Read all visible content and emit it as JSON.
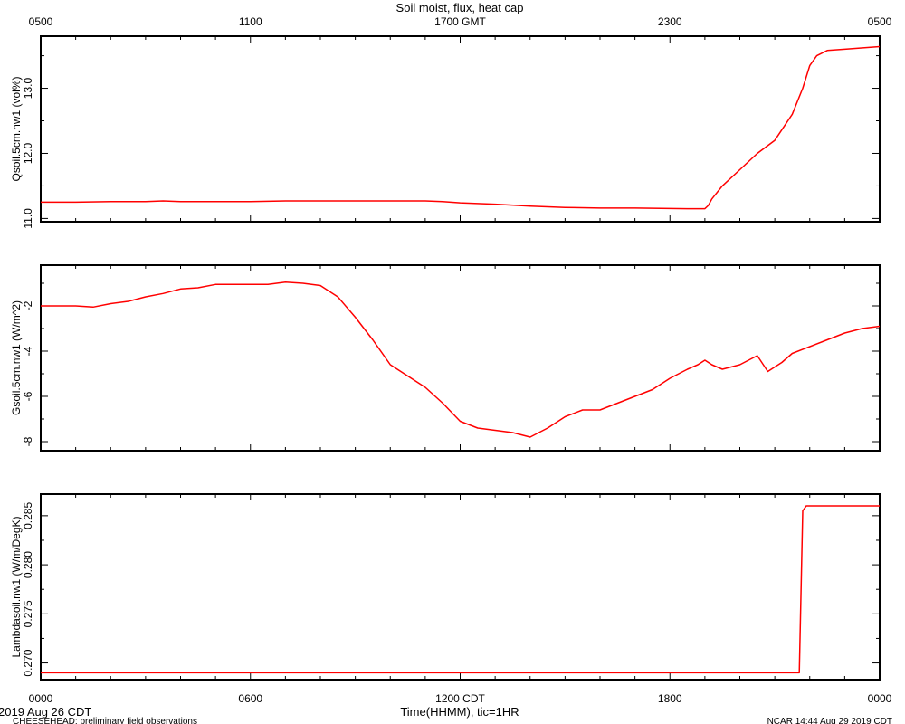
{
  "header": {
    "title": "Soil moist, flux, heat cap"
  },
  "footer": {
    "start_date": "2019 Aug 26 CDT",
    "project_note": "CHEESEHEAD: preliminary field observations",
    "generated": "NCAR 14:44 Aug 29 2019 CDT"
  },
  "chart_data": {
    "type": "line",
    "title": "Soil moist, flux, heat cap",
    "xlabel": "Time(HHMM), tic=1HR",
    "x_unit": "hours since 2019-08-26 00:00 CDT",
    "xlim": [
      0,
      24
    ],
    "bottom_ticks": [
      {
        "x": 0,
        "label": "0000"
      },
      {
        "x": 6,
        "label": "0600"
      },
      {
        "x": 12,
        "label": "1200 CDT"
      },
      {
        "x": 18,
        "label": "1800"
      },
      {
        "x": 24,
        "label": "0000"
      }
    ],
    "top_ticks": [
      {
        "x": 0,
        "label": "0500"
      },
      {
        "x": 6,
        "label": "1100"
      },
      {
        "x": 12,
        "label": "1700 GMT"
      },
      {
        "x": 18,
        "label": "2300"
      },
      {
        "x": 24,
        "label": "0500"
      }
    ],
    "panels": [
      {
        "ylabel": "Qsoil.5cm.nw1 (vol%)",
        "ylim": [
          10.95,
          13.8
        ],
        "yticks": [
          {
            "v": 11.0,
            "label": "11.0"
          },
          {
            "v": 12.0,
            "label": "12.0"
          },
          {
            "v": 13.0,
            "label": "13.0"
          }
        ],
        "series": [
          {
            "color": "#ff0000",
            "x": [
              0,
              1,
              2,
              3,
              3.5,
              4,
              5,
              6,
              7,
              8,
              9,
              10,
              11,
              11.5,
              12,
              13,
              14,
              15,
              16,
              17,
              18.5,
              19.0,
              19.1,
              19.2,
              19.5,
              20,
              20.5,
              21,
              21.5,
              21.8,
              22,
              22.2,
              22.5,
              23,
              24
            ],
            "y": [
              11.25,
              11.25,
              11.26,
              11.26,
              11.27,
              11.26,
              11.26,
              11.26,
              11.27,
              11.27,
              11.27,
              11.27,
              11.27,
              11.26,
              11.24,
              11.22,
              11.19,
              11.17,
              11.16,
              11.16,
              11.15,
              11.15,
              11.2,
              11.3,
              11.5,
              11.75,
              12.0,
              12.2,
              12.6,
              13.0,
              13.35,
              13.5,
              13.58,
              13.6,
              13.64
            ]
          }
        ]
      },
      {
        "ylabel": "Gsoil.5cm.nw1 (W/m^2)",
        "ylim": [
          -8.4,
          -0.2
        ],
        "yticks": [
          {
            "v": -2,
            "label": "-2"
          },
          {
            "v": -4,
            "label": "-4"
          },
          {
            "v": -6,
            "label": "-6"
          },
          {
            "v": -8,
            "label": "-8"
          }
        ],
        "series": [
          {
            "color": "#ff0000",
            "x": [
              0,
              1,
              1.5,
              2,
              2.5,
              3,
              3.5,
              4,
              4.5,
              5,
              5.5,
              6,
              6.5,
              7,
              7.5,
              8,
              8.2,
              8.5,
              9,
              9.5,
              10,
              10.5,
              11,
              11.5,
              12,
              12.5,
              13,
              13.5,
              14,
              14.5,
              15,
              15.5,
              16,
              16.5,
              17,
              17.5,
              18,
              18.5,
              18.8,
              19,
              19.2,
              19.5,
              20,
              20.5,
              20.8,
              21,
              21.2,
              21.5,
              22,
              22.5,
              23,
              23.5,
              24
            ],
            "y": [
              -2.0,
              -2.0,
              -2.05,
              -1.9,
              -1.8,
              -1.6,
              -1.45,
              -1.25,
              -1.2,
              -1.05,
              -1.05,
              -1.05,
              -1.05,
              -0.95,
              -1.0,
              -1.1,
              -1.3,
              -1.6,
              -2.5,
              -3.5,
              -4.6,
              -5.1,
              -5.6,
              -6.3,
              -7.1,
              -7.4,
              -7.5,
              -7.6,
              -7.8,
              -7.4,
              -6.9,
              -6.6,
              -6.6,
              -6.3,
              -6.0,
              -5.7,
              -5.2,
              -4.8,
              -4.6,
              -4.4,
              -4.6,
              -4.8,
              -4.6,
              -4.2,
              -4.9,
              -4.7,
              -4.5,
              -4.1,
              -3.8,
              -3.5,
              -3.2,
              -3.0,
              -2.9
            ]
          }
        ]
      },
      {
        "ylabel": "Lambdasoil.nw1 (W/m/DegK)",
        "ylim": [
          0.2683,
          0.2872
        ],
        "yticks": [
          {
            "v": 0.27,
            "label": "0.270"
          },
          {
            "v": 0.275,
            "label": "0.275"
          },
          {
            "v": 0.28,
            "label": "0.280"
          },
          {
            "v": 0.285,
            "label": "0.285"
          }
        ],
        "series": [
          {
            "color": "#ff0000",
            "x": [
              0,
              21.7,
              21.8,
              21.9,
              24
            ],
            "y": [
              0.269,
              0.269,
              0.2855,
              0.286,
              0.286
            ]
          }
        ]
      }
    ]
  }
}
